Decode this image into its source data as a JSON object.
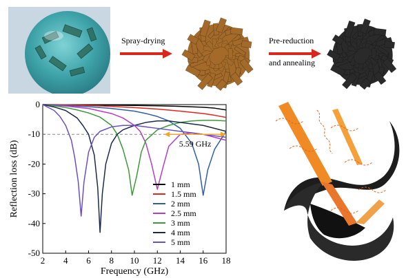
{
  "process": {
    "step1_label": "Spray-drying",
    "step2_label_line1": "Pre-reduction",
    "step2_label_line2": "and annealing",
    "arrow_color": "#d9271c",
    "flower_brown": "#a36a2a",
    "flower_black": "#2a2a2a"
  },
  "chart_data": {
    "type": "line",
    "xlabel": "Frequency (GHz)",
    "ylabel": "Reflection loss (dB)",
    "xlim": [
      2,
      18
    ],
    "ylim": [
      -50,
      0
    ],
    "xticks": [
      2,
      4,
      6,
      8,
      10,
      12,
      14,
      16,
      18
    ],
    "yticks": [
      0,
      -10,
      -20,
      -30,
      -40,
      -50
    ],
    "legend_position": "lower-center",
    "annotation": {
      "text": "5.59 GHz",
      "x_start": 12.6,
      "x_end": 18.0,
      "y": -10
    },
    "threshold_y": -10,
    "series": [
      {
        "name": "1 mm",
        "color": "#000000",
        "x": [
          2,
          4,
          6,
          8,
          10,
          12,
          14,
          16,
          17,
          18
        ],
        "y": [
          0,
          -0.05,
          -0.1,
          -0.2,
          -0.3,
          -0.4,
          -0.6,
          -0.9,
          -1.2,
          -1.8
        ]
      },
      {
        "name": "1.5 mm",
        "color": "#e3241c",
        "x": [
          2,
          4,
          6,
          8,
          10,
          12,
          14,
          16,
          17,
          18
        ],
        "y": [
          0,
          -0.1,
          -0.3,
          -0.6,
          -1,
          -1.5,
          -2.2,
          -3,
          -3.6,
          -4.3
        ]
      },
      {
        "name": "2 mm",
        "color": "#2f5ea8",
        "x": [
          2,
          4,
          6,
          8,
          10,
          11,
          12,
          13,
          14,
          15,
          15.6,
          16,
          16.4,
          17,
          17.5,
          18
        ],
        "y": [
          0,
          -0.3,
          -0.7,
          -1.3,
          -2.2,
          -3,
          -4,
          -5.5,
          -8,
          -13,
          -20,
          -30.5,
          -22,
          -15,
          -12,
          -9
        ]
      },
      {
        "name": "2.5 mm",
        "color": "#b43cc8",
        "x": [
          2,
          4,
          6,
          8,
          9,
          10,
          10.5,
          11,
          11.5,
          12,
          12.5,
          13,
          14,
          15,
          16,
          17,
          18
        ],
        "y": [
          0,
          -0.5,
          -1.3,
          -3,
          -4.5,
          -7,
          -9,
          -13,
          -20,
          -28.5,
          -21,
          -14,
          -10,
          -9.5,
          -10,
          -11,
          -12
        ]
      },
      {
        "name": "3 mm",
        "color": "#3a9a3a",
        "x": [
          2,
          3,
          4,
          5,
          6,
          7,
          8,
          8.5,
          9,
          9.5,
          9.8,
          10.2,
          10.6,
          11,
          12,
          13,
          14,
          15,
          16,
          17,
          18
        ],
        "y": [
          0,
          -0.4,
          -1,
          -1.8,
          -2.8,
          -4.2,
          -7,
          -10,
          -15,
          -22,
          -30.5,
          -24,
          -16,
          -12,
          -8.5,
          -7,
          -6,
          -5.5,
          -5.3,
          -5.3,
          -5.5
        ]
      },
      {
        "name": "4 mm",
        "color": "#1b2a4a",
        "x": [
          2,
          3,
          4,
          5,
          5.5,
          6,
          6.5,
          6.8,
          7.0,
          7.2,
          7.5,
          8,
          8.5,
          9,
          10,
          11,
          12,
          13,
          14,
          16,
          18
        ],
        "y": [
          0,
          -0.8,
          -2,
          -4.5,
          -7,
          -10,
          -17,
          -28,
          -43,
          -30,
          -20,
          -13,
          -10,
          -8.5,
          -7,
          -6,
          -5.5,
          -5.5,
          -6,
          -7,
          -9
        ]
      },
      {
        "name": "5 mm",
        "color": "#6a4fc4",
        "x": [
          2,
          3,
          3.5,
          4,
          4.5,
          4.8,
          5.1,
          5.35,
          5.6,
          6,
          6.5,
          7,
          8,
          9,
          10,
          11,
          12,
          14,
          16,
          18
        ],
        "y": [
          0,
          -2,
          -4,
          -7,
          -12,
          -18,
          -26,
          -37.5,
          -26,
          -16,
          -11,
          -9,
          -7.5,
          -7,
          -7,
          -7.5,
          -8,
          -9,
          -10,
          -11
        ]
      }
    ]
  }
}
